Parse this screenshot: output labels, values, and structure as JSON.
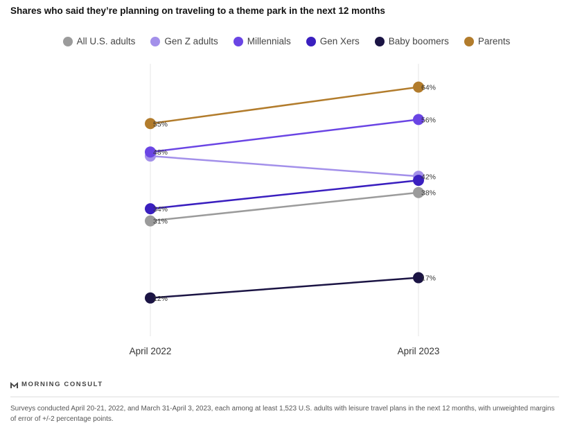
{
  "title": "Shares who said they’re planning on traveling to a theme park in the next 12 months",
  "brand": {
    "name": "MORNING CONSULT"
  },
  "footnote": "Surveys conducted April 20-21, 2022, and March 31-April 3, 2023, each among at least 1,523 U.S. adults with leisure travel plans in the next 12 months, with unweighted margins of error of +/-2 percentage points.",
  "chart_data": {
    "type": "line",
    "title": "Shares who said they’re planning on traveling to a theme park in the next 12 months",
    "categories": [
      "April 2022",
      "April 2023"
    ],
    "ylim": [
      0,
      70
    ],
    "grid": "vertical",
    "legend_position": "top",
    "series": [
      {
        "name": "All U.S. adults",
        "color": "#9b9b9b",
        "values": [
          31,
          38
        ],
        "labels": [
          "31%",
          "38%"
        ]
      },
      {
        "name": "Gen Z adults",
        "color": "#a390ea",
        "values": [
          47,
          42
        ],
        "labels": [
          "",
          "42%"
        ]
      },
      {
        "name": "Millennials",
        "color": "#6a45e4",
        "values": [
          48,
          56
        ],
        "labels": [
          "48%",
          "56%"
        ]
      },
      {
        "name": "Gen Xers",
        "color": "#3a1fbf",
        "values": [
          34,
          41
        ],
        "labels": [
          "34%",
          ""
        ]
      },
      {
        "name": "Baby boomers",
        "color": "#1b1444",
        "values": [
          12,
          17
        ],
        "labels": [
          "12%",
          "17%"
        ]
      },
      {
        "name": "Parents",
        "color": "#b27c2c",
        "values": [
          55,
          64
        ],
        "labels": [
          "55%",
          "64%"
        ]
      }
    ]
  }
}
